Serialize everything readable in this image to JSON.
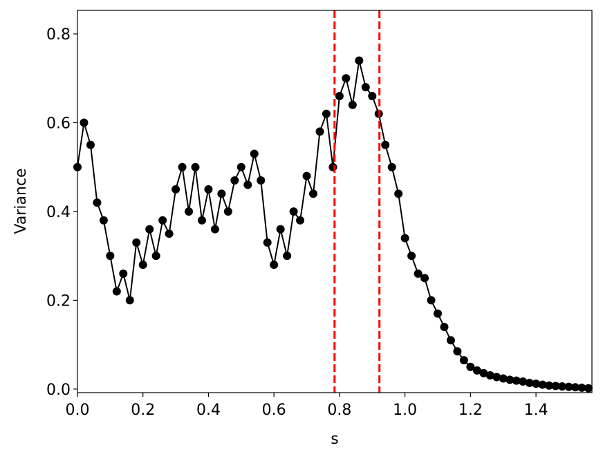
{
  "chart_data": {
    "type": "line",
    "xlabel": "s",
    "ylabel": "Variance",
    "x": [
      0.0,
      0.02,
      0.04,
      0.06,
      0.08,
      0.1,
      0.12,
      0.14,
      0.16,
      0.18,
      0.2,
      0.22,
      0.24,
      0.26,
      0.28,
      0.3,
      0.32,
      0.34,
      0.36,
      0.38,
      0.4,
      0.42,
      0.44,
      0.46,
      0.48,
      0.5,
      0.52,
      0.54,
      0.56,
      0.58,
      0.6,
      0.62,
      0.64,
      0.66,
      0.68,
      0.7,
      0.72,
      0.74,
      0.76,
      0.78,
      0.8,
      0.82,
      0.84,
      0.86,
      0.88,
      0.9,
      0.92,
      0.94,
      0.96,
      0.98,
      1.0,
      1.02,
      1.04,
      1.06,
      1.08,
      1.1,
      1.12,
      1.14,
      1.16,
      1.18,
      1.2,
      1.22,
      1.24,
      1.26,
      1.28,
      1.3,
      1.32,
      1.34,
      1.36,
      1.38,
      1.4,
      1.42,
      1.44,
      1.46,
      1.48,
      1.5,
      1.52,
      1.54,
      1.56
    ],
    "series": [
      {
        "color": "#000000",
        "values": [
          0.5,
          0.6,
          0.55,
          0.42,
          0.38,
          0.3,
          0.22,
          0.26,
          0.2,
          0.33,
          0.28,
          0.36,
          0.3,
          0.38,
          0.35,
          0.45,
          0.5,
          0.4,
          0.5,
          0.38,
          0.45,
          0.36,
          0.44,
          0.4,
          0.47,
          0.5,
          0.46,
          0.53,
          0.47,
          0.33,
          0.28,
          0.36,
          0.3,
          0.4,
          0.38,
          0.48,
          0.44,
          0.58,
          0.62,
          0.5,
          0.66,
          0.7,
          0.64,
          0.74,
          0.68,
          0.66,
          0.62,
          0.55,
          0.5,
          0.44,
          0.34,
          0.3,
          0.26,
          0.25,
          0.2,
          0.17,
          0.14,
          0.11,
          0.085,
          0.065,
          0.05,
          0.042,
          0.036,
          0.031,
          0.027,
          0.024,
          0.021,
          0.019,
          0.017,
          0.014,
          0.012,
          0.01,
          0.008,
          0.007,
          0.006,
          0.005,
          0.004,
          0.003,
          0.002
        ]
      }
    ],
    "vlines": [
      0.785,
      0.922
    ],
    "vline_color": "#ff0000",
    "xlim": [
      0,
      1.5708
    ],
    "ylim": [
      -0.008,
      0.853
    ],
    "xticks": [
      {
        "value": 0,
        "label": "0.0"
      },
      0.2,
      0.4,
      0.6,
      0.8,
      {
        "value": 1,
        "label": "1.0"
      },
      1.2,
      1.4
    ],
    "yticks": [
      {
        "value": 0,
        "label": "0.0"
      },
      0.2,
      0.4,
      0.6,
      0.8
    ]
  }
}
